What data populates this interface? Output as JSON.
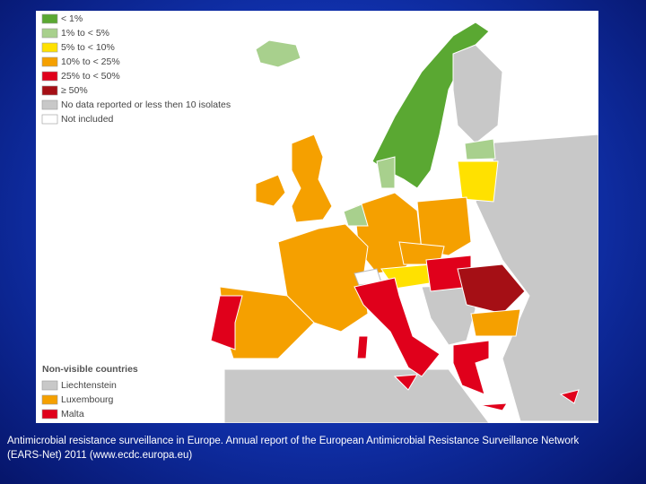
{
  "legend": {
    "items": [
      {
        "label": "< 1%",
        "color": "#5aa832"
      },
      {
        "label": "1% to < 5%",
        "color": "#a8d08d"
      },
      {
        "label": "5% to < 10%",
        "color": "#ffe100"
      },
      {
        "label": "10% to < 25%",
        "color": "#f5a000"
      },
      {
        "label": "25% to < 50%",
        "color": "#e0001b"
      },
      {
        "label": "≥ 50%",
        "color": "#a50f15"
      },
      {
        "label": "No data reported or less then 10 isolates",
        "color": "#c8c8c8"
      },
      {
        "label": "Not included",
        "color": "#ffffff"
      }
    ]
  },
  "non_visible": {
    "title": "Non-visible countries",
    "items": [
      {
        "label": "Liechtenstein",
        "color": "#c8c8c8"
      },
      {
        "label": "Luxembourg",
        "color": "#f5a000"
      },
      {
        "label": "Malta",
        "color": "#e0001b"
      }
    ]
  },
  "caption": {
    "lines": [
      "Antimicrobial resistance surveillance in Europe. Annual report of the European Antimicrobial Resistance Surveillance Network",
      "(EARS-Net) 2011 (www.ecdc.europa.eu)"
    ]
  }
}
